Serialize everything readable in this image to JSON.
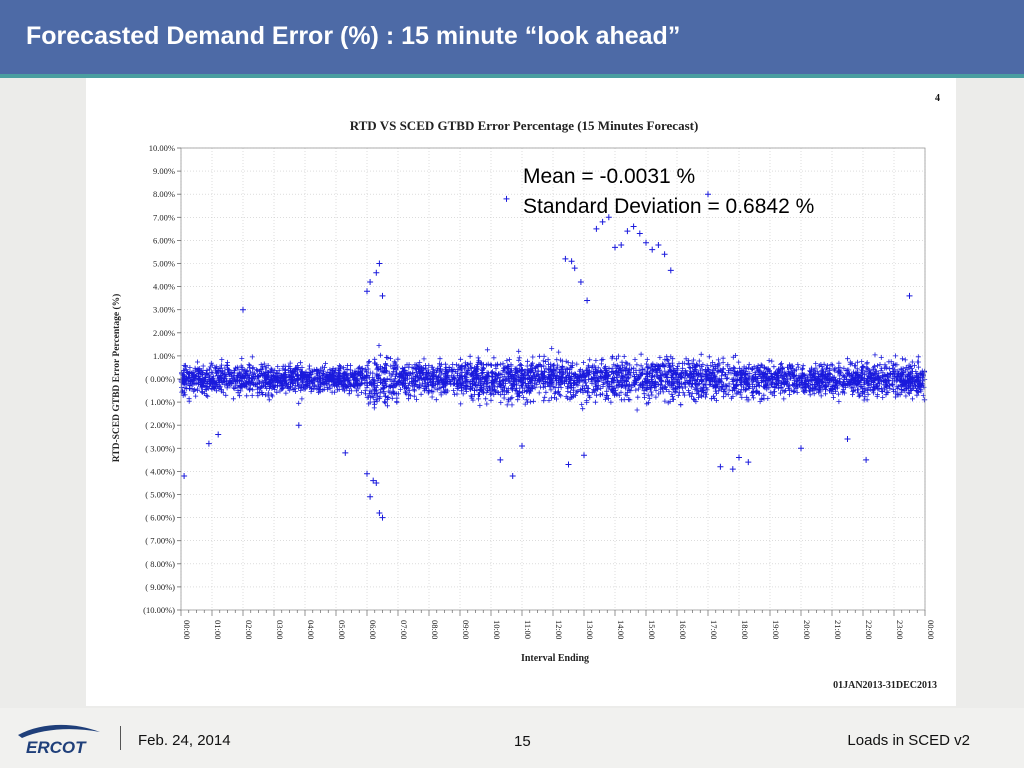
{
  "header": {
    "title": "Forecasted Demand Error (%) : 15 minute “look ahead”"
  },
  "footer": {
    "date": "Feb. 24, 2014",
    "page": "15",
    "right": "Loads in SCED v2",
    "logo_text": "ERCOT"
  },
  "colors": {
    "header_bg": "#4d6aa6",
    "accent": "#4a9ea0",
    "marker": "#1a1adc"
  },
  "chart_data": {
    "type": "scatter",
    "title": "RTD VS SCED GTBD Error Percentage (15 Minutes Forecast)",
    "corner_label": "4",
    "xlabel": "Interval Ending",
    "ylabel": "RTD-SCED GTBD Error Percentage (%)",
    "date_range": "01JAN2013-31DEC2013",
    "annotation": {
      "mean": "Mean = -0.0031 %",
      "std": "Standard Deviation = 0.6842 %"
    },
    "x_ticks": [
      "00:00",
      "01:00",
      "02:00",
      "03:00",
      "04:00",
      "05:00",
      "06:00",
      "07:00",
      "08:00",
      "09:00",
      "10:00",
      "11:00",
      "12:00",
      "13:00",
      "14:00",
      "15:00",
      "16:00",
      "17:00",
      "18:00",
      "19:00",
      "20:00",
      "21:00",
      "22:00",
      "23:00",
      "00:00"
    ],
    "y_ticks": [
      "10.00%",
      "9.00%",
      "8.00%",
      "7.00%",
      "6.00%",
      "5.00%",
      "4.00%",
      "3.00%",
      "2.00%",
      "1.00%",
      "( 0.00%)",
      "( 1.00%)",
      "( 2.00%)",
      "( 3.00%)",
      "( 4.00%)",
      "( 5.00%)",
      "( 6.00%)",
      "( 7.00%)",
      "( 8.00%)",
      "( 9.00%)",
      "(10.00%)"
    ],
    "ylim": [
      -10,
      10
    ],
    "xlim_hours": [
      0,
      24
    ],
    "grid": true,
    "marker": "+",
    "summary": {
      "mean_pct": -0.0031,
      "std_pct": 0.6842
    },
    "outliers": [
      {
        "x": 0.1,
        "y": -4.2
      },
      {
        "x": 0.9,
        "y": -2.8
      },
      {
        "x": 1.2,
        "y": -2.4
      },
      {
        "x": 2.0,
        "y": 3.0
      },
      {
        "x": 3.8,
        "y": -2.0
      },
      {
        "x": 5.3,
        "y": -3.2
      },
      {
        "x": 6.0,
        "y": -4.1
      },
      {
        "x": 6.1,
        "y": -5.1
      },
      {
        "x": 6.2,
        "y": -4.4
      },
      {
        "x": 6.3,
        "y": -4.5
      },
      {
        "x": 6.4,
        "y": -5.8
      },
      {
        "x": 6.5,
        "y": -6.0
      },
      {
        "x": 6.1,
        "y": 4.2
      },
      {
        "x": 6.3,
        "y": 4.6
      },
      {
        "x": 6.4,
        "y": 5.0
      },
      {
        "x": 6.0,
        "y": 3.8
      },
      {
        "x": 6.5,
        "y": 3.6
      },
      {
        "x": 10.3,
        "y": -3.5
      },
      {
        "x": 10.7,
        "y": -4.2
      },
      {
        "x": 10.5,
        "y": 7.8
      },
      {
        "x": 12.4,
        "y": 5.2
      },
      {
        "x": 12.6,
        "y": 5.1
      },
      {
        "x": 12.7,
        "y": 4.8
      },
      {
        "x": 12.9,
        "y": 4.2
      },
      {
        "x": 13.1,
        "y": 3.4
      },
      {
        "x": 13.4,
        "y": 6.5
      },
      {
        "x": 13.6,
        "y": 6.8
      },
      {
        "x": 13.8,
        "y": 7.0
      },
      {
        "x": 14.0,
        "y": 5.7
      },
      {
        "x": 14.2,
        "y": 5.8
      },
      {
        "x": 14.4,
        "y": 6.4
      },
      {
        "x": 14.6,
        "y": 6.6
      },
      {
        "x": 14.8,
        "y": 6.3
      },
      {
        "x": 15.0,
        "y": 5.9
      },
      {
        "x": 15.2,
        "y": 5.6
      },
      {
        "x": 15.4,
        "y": 5.8
      },
      {
        "x": 15.6,
        "y": 5.4
      },
      {
        "x": 15.8,
        "y": 4.7
      },
      {
        "x": 17.0,
        "y": 8.0
      },
      {
        "x": 17.4,
        "y": -3.8
      },
      {
        "x": 17.8,
        "y": -3.9
      },
      {
        "x": 18.3,
        "y": -3.6
      },
      {
        "x": 18.0,
        "y": -3.4
      },
      {
        "x": 20.0,
        "y": -3.0
      },
      {
        "x": 21.5,
        "y": -2.6
      },
      {
        "x": 22.1,
        "y": -3.5
      },
      {
        "x": 23.5,
        "y": 3.6
      },
      {
        "x": 11.0,
        "y": -2.9
      },
      {
        "x": 13.0,
        "y": -3.3
      },
      {
        "x": 12.5,
        "y": -3.7
      }
    ]
  }
}
